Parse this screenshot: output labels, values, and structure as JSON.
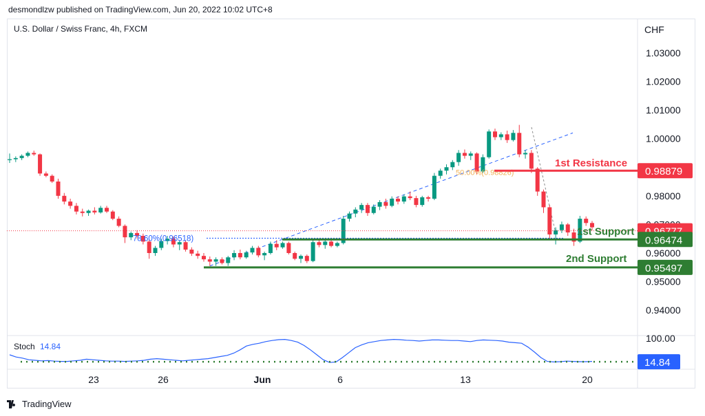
{
  "header": {
    "publisher_line": "desmondlzw published on TradingView.com, Jun 20, 2022 10:02 UTC+8"
  },
  "chart_data": {
    "type": "candlestick",
    "title": "U.S. Dollar / Swiss Franc, 4h, FXCM",
    "currency": "CHF",
    "price_axis": {
      "ylim": [
        0.935,
        1.035
      ],
      "ticks": [
        "1.03000",
        "1.02000",
        "1.01000",
        "1.00000",
        "0.99000",
        "0.98000",
        "0.97000",
        "0.96000",
        "0.95000",
        "0.94000"
      ]
    },
    "time_axis": {
      "labels": [
        "23",
        "26",
        "Jun",
        "6",
        "13",
        "20"
      ]
    },
    "candles": [
      [
        0.9925,
        0.9948,
        0.9915,
        0.9928
      ],
      [
        0.9928,
        0.9938,
        0.9918,
        0.9932
      ],
      [
        0.9932,
        0.9945,
        0.9925,
        0.994
      ],
      [
        0.994,
        0.9955,
        0.9935,
        0.995
      ],
      [
        0.995,
        0.9958,
        0.994,
        0.9945
      ],
      [
        0.9945,
        0.9948,
        0.987,
        0.9878
      ],
      [
        0.9878,
        0.9885,
        0.9865,
        0.987
      ],
      [
        0.987,
        0.9875,
        0.9845,
        0.985
      ],
      [
        0.985,
        0.986,
        0.979,
        0.98
      ],
      [
        0.98,
        0.981,
        0.977,
        0.978
      ],
      [
        0.978,
        0.979,
        0.9755,
        0.9765
      ],
      [
        0.9765,
        0.9775,
        0.9735,
        0.9745
      ],
      [
        0.9745,
        0.9755,
        0.9728,
        0.974
      ],
      [
        0.974,
        0.9752,
        0.973,
        0.9748
      ],
      [
        0.9748,
        0.976,
        0.9735,
        0.9742
      ],
      [
        0.9742,
        0.9765,
        0.9738,
        0.9758
      ],
      [
        0.9758,
        0.9765,
        0.974,
        0.9745
      ],
      [
        0.9745,
        0.975,
        0.9715,
        0.972
      ],
      [
        0.972,
        0.9728,
        0.969,
        0.9695
      ],
      [
        0.9695,
        0.97,
        0.9635,
        0.9655
      ],
      [
        0.9655,
        0.9675,
        0.9645,
        0.967
      ],
      [
        0.967,
        0.968,
        0.965,
        0.966
      ],
      [
        0.966,
        0.9668,
        0.963,
        0.964
      ],
      [
        0.964,
        0.9648,
        0.958,
        0.96
      ],
      [
        0.96,
        0.9625,
        0.959,
        0.9618
      ],
      [
        0.9618,
        0.965,
        0.961,
        0.9642
      ],
      [
        0.9642,
        0.966,
        0.963,
        0.965
      ],
      [
        0.965,
        0.9658,
        0.962,
        0.963
      ],
      [
        0.963,
        0.9645,
        0.961,
        0.9638
      ],
      [
        0.9638,
        0.9645,
        0.9605,
        0.9612
      ],
      [
        0.9612,
        0.962,
        0.959,
        0.9598
      ],
      [
        0.9598,
        0.9608,
        0.958,
        0.959
      ],
      [
        0.959,
        0.96,
        0.957,
        0.9578
      ],
      [
        0.9578,
        0.9588,
        0.9555,
        0.957
      ],
      [
        0.957,
        0.9585,
        0.9555,
        0.9578
      ],
      [
        0.9578,
        0.9585,
        0.956,
        0.9565
      ],
      [
        0.9565,
        0.959,
        0.9555,
        0.9585
      ],
      [
        0.9585,
        0.961,
        0.9575,
        0.96
      ],
      [
        0.96,
        0.9612,
        0.9578,
        0.9585
      ],
      [
        0.9585,
        0.9608,
        0.958,
        0.9602
      ],
      [
        0.9602,
        0.9625,
        0.9595,
        0.9618
      ],
      [
        0.9618,
        0.9625,
        0.9585,
        0.9592
      ],
      [
        0.9592,
        0.9605,
        0.9575,
        0.96
      ],
      [
        0.96,
        0.964,
        0.9595,
        0.9632
      ],
      [
        0.9632,
        0.9645,
        0.961,
        0.962
      ],
      [
        0.962,
        0.964,
        0.9615,
        0.9635
      ],
      [
        0.9635,
        0.964,
        0.9595,
        0.96
      ],
      [
        0.96,
        0.9605,
        0.9575,
        0.958
      ],
      [
        0.958,
        0.9595,
        0.9565,
        0.959
      ],
      [
        0.959,
        0.9595,
        0.9565,
        0.9572
      ],
      [
        0.9572,
        0.9645,
        0.9568,
        0.9638
      ],
      [
        0.9638,
        0.965,
        0.962,
        0.9628
      ],
      [
        0.9628,
        0.9645,
        0.9615,
        0.964
      ],
      [
        0.964,
        0.965,
        0.962,
        0.9625
      ],
      [
        0.9625,
        0.964,
        0.962,
        0.9635
      ],
      [
        0.9635,
        0.973,
        0.963,
        0.972
      ],
      [
        0.972,
        0.9745,
        0.971,
        0.9738
      ],
      [
        0.9738,
        0.976,
        0.9725,
        0.9752
      ],
      [
        0.9752,
        0.9775,
        0.974,
        0.9768
      ],
      [
        0.9768,
        0.9775,
        0.973,
        0.974
      ],
      [
        0.974,
        0.977,
        0.9735,
        0.9762
      ],
      [
        0.9762,
        0.9785,
        0.975,
        0.9778
      ],
      [
        0.9778,
        0.979,
        0.9755,
        0.9765
      ],
      [
        0.9765,
        0.9798,
        0.976,
        0.979
      ],
      [
        0.979,
        0.9798,
        0.977,
        0.978
      ],
      [
        0.978,
        0.9805,
        0.9772,
        0.9798
      ],
      [
        0.9798,
        0.9815,
        0.9785,
        0.9792
      ],
      [
        0.9792,
        0.98,
        0.976,
        0.9768
      ],
      [
        0.9768,
        0.98,
        0.9762,
        0.9795
      ],
      [
        0.9795,
        0.98,
        0.978,
        0.979
      ],
      [
        0.979,
        0.988,
        0.9785,
        0.987
      ],
      [
        0.987,
        0.9895,
        0.986,
        0.9888
      ],
      [
        0.9888,
        0.991,
        0.9875,
        0.99
      ],
      [
        0.99,
        0.9925,
        0.989,
        0.9918
      ],
      [
        0.9918,
        0.996,
        0.9905,
        0.995
      ],
      [
        0.995,
        0.9962,
        0.993,
        0.994
      ],
      [
        0.994,
        0.9955,
        0.9925,
        0.9948
      ],
      [
        0.9948,
        0.9952,
        0.9875,
        0.9885
      ],
      [
        0.9885,
        0.9945,
        0.988,
        0.9935
      ],
      [
        0.9935,
        1.0032,
        0.993,
        1.0025
      ],
      [
        1.0025,
        1.0035,
        0.9995,
        1.0005
      ],
      [
        1.0005,
        1.0022,
        0.9995,
        1.0015
      ],
      [
        1.0015,
        1.0028,
        0.9985,
        0.9995
      ],
      [
        0.9995,
        1.003,
        0.999,
        1.002
      ],
      [
        1.002,
        1.0048,
        0.9935,
        0.9945
      ],
      [
        0.9945,
        0.996,
        0.993,
        0.995
      ],
      [
        0.995,
        0.996,
        0.988,
        0.9895
      ],
      [
        0.9895,
        0.99,
        0.98,
        0.9815
      ],
      [
        0.9815,
        0.9822,
        0.974,
        0.976
      ],
      [
        0.976,
        0.9768,
        0.965,
        0.9665
      ],
      [
        0.9665,
        0.969,
        0.963,
        0.968
      ],
      [
        0.968,
        0.971,
        0.967,
        0.97
      ],
      [
        0.97,
        0.9705,
        0.966,
        0.9672
      ],
      [
        0.9672,
        0.9685,
        0.9625,
        0.964
      ],
      [
        0.964,
        0.973,
        0.9635,
        0.972
      ],
      [
        0.972,
        0.9728,
        0.9695,
        0.9705
      ],
      [
        0.9705,
        0.9712,
        0.968,
        0.969
      ]
    ],
    "colors": {
      "up": "#089981",
      "down": "#f23645",
      "resistance": "#f23645",
      "support": "#2e7d32",
      "fib": "#2962ff",
      "stoch": "#2962ff"
    },
    "levels": [
      {
        "name": "1st Resistance",
        "price": 0.98879,
        "label": "0.98879",
        "color": "#f23645"
      },
      {
        "name": "1st Support",
        "price": 0.96474,
        "label": "0.96474",
        "color": "#2e7d32"
      },
      {
        "name": "2nd Support",
        "price": 0.95497,
        "label": "0.95497",
        "color": "#2e7d32"
      }
    ],
    "current_price": {
      "price": 0.96777,
      "label": "0.96777",
      "color": "#f23645"
    },
    "fib_annotations": [
      {
        "text": "78.60%(0.96518)",
        "price": 0.96518
      },
      {
        "text": "50.00%(0.98826)",
        "price": 0.98826
      }
    ],
    "stochastic": {
      "label": "Stoch",
      "value_label": "14.84",
      "value": 14.84,
      "axis_label": "100.00",
      "series": [
        40,
        32,
        28,
        22,
        20,
        18,
        19,
        17,
        16,
        16,
        18,
        20,
        24,
        22,
        20,
        18,
        17,
        17,
        16,
        17,
        18,
        20,
        24,
        26,
        24,
        22,
        20,
        18,
        20,
        22,
        24,
        26,
        30,
        34,
        38,
        46,
        58,
        72,
        78,
        82,
        88,
        92,
        95,
        96,
        92,
        86,
        74,
        58,
        40,
        22,
        12,
        14,
        30,
        48,
        66,
        76,
        84,
        88,
        92,
        94,
        96,
        95,
        93,
        92,
        90,
        92,
        94,
        94,
        93,
        92,
        92,
        90,
        88,
        92,
        94,
        93,
        92,
        90,
        86,
        84,
        82,
        68,
        50,
        30,
        16,
        14,
        15,
        17,
        16,
        15,
        15,
        16
      ]
    }
  },
  "footer": {
    "brand": "TradingView"
  }
}
